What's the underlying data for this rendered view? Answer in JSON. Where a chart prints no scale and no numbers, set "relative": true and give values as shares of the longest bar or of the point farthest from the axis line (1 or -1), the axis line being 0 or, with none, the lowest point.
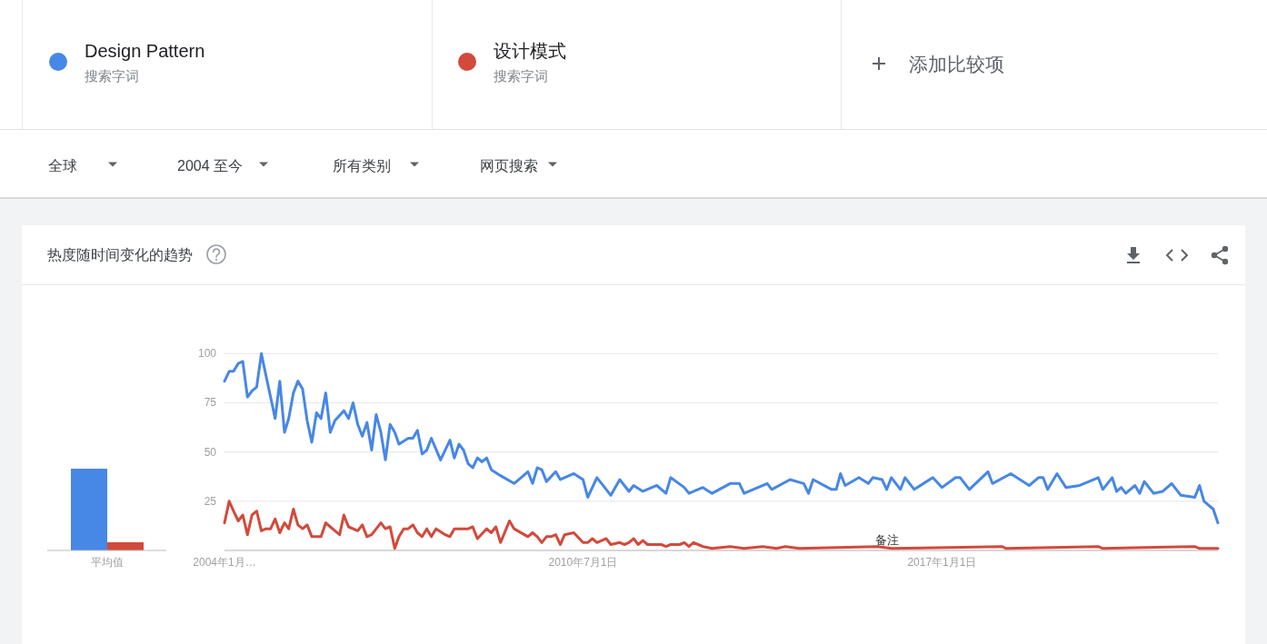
{
  "chart_data": [
    {
      "type": "line",
      "title": "热度随时间变化的趋势",
      "annotations": [
        "搜索字词",
        "搜索字词",
        "添加比较项",
        "全球",
        "2004 至今",
        "所有类别",
        "网页搜索",
        {
          "text": "备注",
          "x": "2016-01",
          "y": 0
        }
      ],
      "xlim": [
        "2004-01",
        "2022-01"
      ],
      "xticks": [
        {
          "value": "2004-01-01",
          "label": "2004年1月…"
        },
        {
          "value": "2010-07-01",
          "label": "2010年7月1日"
        },
        {
          "value": "2017-01-01",
          "label": "2017年1月1日"
        }
      ],
      "ylim": [
        0,
        100
      ],
      "yticks": [
        {
          "value": 0,
          "label": null
        },
        25,
        50,
        75,
        100
      ],
      "grid": "y",
      "legend": "top",
      "series": [
        {
          "name": "Design Pattern",
          "color": "#4787e6",
          "x": [
            "2004-01",
            "2004-02",
            "2004-03",
            "2004-04",
            "2004-05",
            "2004-06",
            "2004-07",
            "2004-08",
            "2004-09",
            "2004-10",
            "2004-11",
            "2004-12",
            "2005-01",
            "2005-02",
            "2005-03",
            "2005-04",
            "2005-05",
            "2005-06",
            "2005-07",
            "2005-08",
            "2005-09",
            "2005-10",
            "2005-11",
            "2005-12",
            "2006-01",
            "2006-03",
            "2006-04",
            "2006-05",
            "2006-06",
            "2006-07",
            "2006-08",
            "2006-09",
            "2006-10",
            "2006-11",
            "2006-12",
            "2007-01",
            "2007-02",
            "2007-03",
            "2007-05",
            "2007-06",
            "2007-07",
            "2007-08",
            "2007-09",
            "2007-10",
            "2007-12",
            "2008-02",
            "2008-03",
            "2008-04",
            "2008-05",
            "2008-06",
            "2008-07",
            "2008-08",
            "2008-09",
            "2008-10",
            "2008-11",
            "2009-01",
            "2009-04",
            "2009-07",
            "2009-08",
            "2009-09",
            "2009-10",
            "2009-11",
            "2010-01",
            "2010-02",
            "2010-05",
            "2010-07",
            "2010-08",
            "2010-10",
            "2010-11",
            "2011-01",
            "2011-03",
            "2011-05",
            "2011-06",
            "2011-08",
            "2011-11",
            "2012-01",
            "2012-02",
            "2012-05",
            "2012-06",
            "2012-09",
            "2012-11",
            "2013-03",
            "2013-05",
            "2013-06",
            "2013-11",
            "2013-12",
            "2014-04",
            "2014-07",
            "2014-08",
            "2014-09",
            "2015-01",
            "2015-02",
            "2015-03",
            "2015-04",
            "2015-07",
            "2015-09",
            "2015-10",
            "2015-12",
            "2016-01",
            "2016-02",
            "2016-04",
            "2016-05",
            "2016-07",
            "2016-11",
            "2017-01",
            "2017-04",
            "2017-05",
            "2017-07",
            "2017-11",
            "2017-12",
            "2018-04",
            "2018-08",
            "2018-10",
            "2018-11",
            "2018-12",
            "2019-02",
            "2019-04",
            "2019-07",
            "2019-11",
            "2019-12",
            "2020-02",
            "2020-03",
            "2020-04",
            "2020-05",
            "2020-07",
            "2020-08",
            "2020-09",
            "2020-11",
            "2021-01",
            "2021-03",
            "2021-05",
            "2021-08",
            "2021-09",
            "2021-10",
            "2021-12",
            "2022-01"
          ],
          "values": [
            86,
            91,
            91,
            95,
            96,
            78,
            81,
            83,
            100,
            89,
            78,
            67,
            86,
            60,
            67,
            80,
            86,
            82,
            66,
            55,
            70,
            67,
            80,
            60,
            66,
            71,
            67,
            75,
            64,
            58,
            65,
            51,
            69,
            60,
            46,
            64,
            60,
            54,
            57,
            57,
            61,
            49,
            51,
            57,
            46,
            56,
            47,
            54,
            51,
            44,
            42,
            47,
            45,
            47,
            41,
            38,
            34,
            40,
            34,
            42,
            41,
            35,
            40,
            36,
            39,
            36,
            27,
            37,
            34,
            28,
            36,
            30,
            33,
            30,
            33,
            29,
            37,
            32,
            29,
            32,
            29,
            34,
            34,
            29,
            34,
            31,
            36,
            34,
            29,
            36,
            31,
            31,
            39,
            33,
            37,
            34,
            37,
            36,
            31,
            37,
            31,
            37,
            31,
            37,
            32,
            37,
            37,
            31,
            40,
            34,
            39,
            33,
            37,
            37,
            31,
            39,
            32,
            33,
            37,
            31,
            37,
            30,
            32,
            29,
            33,
            29,
            35,
            29,
            30,
            34,
            28,
            27,
            33,
            25,
            21,
            14
          ]
        },
        {
          "name": "设计模式",
          "color": "#d24a3c",
          "x": [
            "2004-01",
            "2004-02",
            "2004-03",
            "2004-04",
            "2004-05",
            "2004-06",
            "2004-07",
            "2004-08",
            "2004-09",
            "2004-10",
            "2004-11",
            "2004-12",
            "2005-01",
            "2005-02",
            "2005-03",
            "2005-04",
            "2005-05",
            "2005-06",
            "2005-07",
            "2005-08",
            "2005-10",
            "2005-11",
            "2005-12",
            "2006-01",
            "2006-02",
            "2006-03",
            "2006-04",
            "2006-06",
            "2006-07",
            "2006-08",
            "2006-09",
            "2006-11",
            "2006-12",
            "2007-01",
            "2007-02",
            "2007-03",
            "2007-04",
            "2007-05",
            "2007-06",
            "2007-07",
            "2007-08",
            "2007-09",
            "2007-10",
            "2007-11",
            "2008-01",
            "2008-02",
            "2008-03",
            "2008-05",
            "2008-06",
            "2008-07",
            "2008-08",
            "2008-10",
            "2008-11",
            "2008-12",
            "2009-01",
            "2009-03",
            "2009-04",
            "2009-07",
            "2009-08",
            "2009-09",
            "2009-10",
            "2009-11",
            "2009-12",
            "2010-01",
            "2010-02",
            "2010-03",
            "2010-05",
            "2010-07",
            "2010-08",
            "2010-09",
            "2010-10",
            "2010-11",
            "2010-12",
            "2011-01",
            "2011-03",
            "2011-04",
            "2011-05",
            "2011-06",
            "2011-07",
            "2011-08",
            "2011-09",
            "2011-12",
            "2012-01",
            "2012-02",
            "2012-04",
            "2012-05",
            "2012-06",
            "2012-07",
            "2012-08",
            "2012-09",
            "2012-11",
            "2013-03",
            "2013-06",
            "2013-10",
            "2014-01",
            "2014-03",
            "2014-06",
            "2015-11",
            "2016-02",
            "2018-02",
            "2018-03",
            "2019-11",
            "2019-12",
            "2021-08",
            "2021-09",
            "2022-01"
          ],
          "values": [
            14,
            25,
            20,
            15,
            18,
            8,
            18,
            20,
            10,
            11,
            11,
            16,
            9,
            14,
            11,
            21,
            13,
            11,
            13,
            7,
            7,
            14,
            12,
            10,
            8,
            18,
            12,
            10,
            13,
            7,
            8,
            14,
            11,
            12,
            1,
            7,
            11,
            11,
            13,
            9,
            7,
            11,
            7,
            11,
            8,
            7,
            11,
            11,
            11,
            12,
            6,
            11,
            9,
            12,
            4,
            15,
            11,
            7,
            9,
            7,
            4,
            7,
            7,
            8,
            3,
            8,
            9,
            4,
            4,
            6,
            4,
            5,
            6,
            3,
            4,
            3,
            4,
            6,
            3,
            5,
            3,
            3,
            2,
            3,
            3,
            4,
            2,
            4,
            3,
            2,
            1,
            2,
            1,
            2,
            1,
            2,
            1,
            2,
            1,
            2,
            1,
            2,
            1,
            2,
            1,
            1
          ]
        }
      ]
    },
    {
      "type": "bar",
      "categories": [
        "平均值"
      ],
      "relative": true,
      "series": [
        {
          "color": "#4787e6",
          "values": [
            1
          ]
        },
        {
          "color": "#d24a3c",
          "values": [
            0.1
          ]
        }
      ]
    }
  ]
}
